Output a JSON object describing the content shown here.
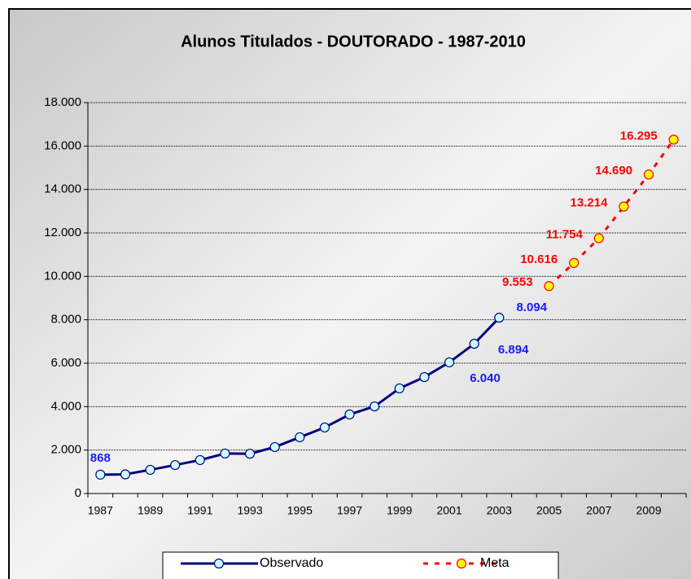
{
  "chart_data": {
    "type": "line",
    "title": "Alunos Titulados - DOUTORADO - 1987-2010",
    "categories": [
      "1987",
      null,
      "1989",
      null,
      "1991",
      null,
      "1993",
      null,
      "1995",
      null,
      "1997",
      null,
      "1999",
      null,
      "2001",
      null,
      "2003",
      null,
      "2005",
      null,
      "2007",
      null,
      "2009",
      null
    ],
    "series": [
      {
        "name": "Observado",
        "color": "#000080",
        "marker_color": "#ccffff",
        "label_color": "#1a1aff",
        "dashed": false,
        "values": [
          868,
          880,
          1090,
          1310,
          1540,
          1840,
          1830,
          2140,
          2590,
          3040,
          3640,
          4010,
          4840,
          5360,
          6040,
          6894,
          8094,
          null,
          null,
          null,
          null,
          null,
          null,
          null
        ],
        "value_labels": [
          "868",
          null,
          null,
          null,
          null,
          null,
          null,
          null,
          null,
          null,
          null,
          null,
          null,
          null,
          "6.040",
          "6.894",
          "8.094",
          null,
          null,
          null,
          null,
          null,
          null,
          null
        ]
      },
      {
        "name": "Meta",
        "color": "#ff0000",
        "marker_color": "#ffff00",
        "label_color": "#ff0000",
        "dashed": true,
        "values": [
          null,
          null,
          null,
          null,
          null,
          null,
          null,
          null,
          null,
          null,
          null,
          null,
          null,
          null,
          null,
          null,
          null,
          null,
          9553,
          10616,
          11754,
          13214,
          14690,
          16295
        ],
        "value_labels": [
          null,
          null,
          null,
          null,
          null,
          null,
          null,
          null,
          null,
          null,
          null,
          null,
          null,
          null,
          null,
          null,
          null,
          null,
          "9.553",
          "10.616",
          "11.754",
          "13.214",
          "14.690",
          "16.295"
        ]
      }
    ],
    "ylim": [
      0,
      18000
    ],
    "yticks": [
      0,
      {
        "value": 2000,
        "label": "2.000"
      },
      {
        "value": 4000,
        "label": "4.000"
      },
      {
        "value": 6000,
        "label": "6.000"
      },
      {
        "value": 8000,
        "label": "8.000"
      },
      {
        "value": 10000,
        "label": "10.000"
      },
      {
        "value": 12000,
        "label": "12.000"
      },
      {
        "value": 14000,
        "label": "14.000"
      },
      {
        "value": 16000,
        "label": "16.000"
      },
      {
        "value": 18000,
        "label": "18.000"
      }
    ],
    "grid": true,
    "legend": "bottom"
  }
}
